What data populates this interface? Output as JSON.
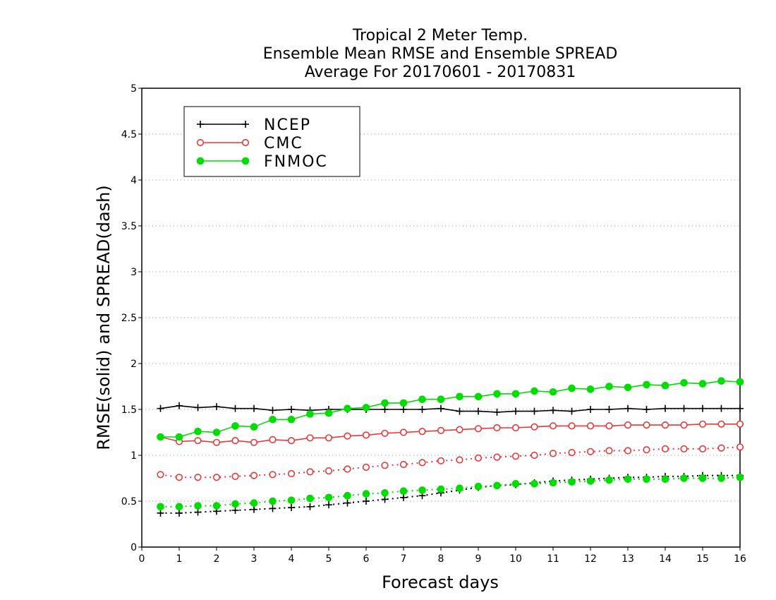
{
  "chart_data": {
    "type": "line",
    "title_lines": [
      "Tropical 2 Meter Temp.",
      "Ensemble Mean RMSE and Ensemble SPREAD",
      "Average For 20170601 - 20170831"
    ],
    "xlabel": "Forecast days",
    "ylabel": "RMSE(solid) and SPREAD(dash)",
    "xlim": [
      0,
      16
    ],
    "ylim": [
      0,
      5
    ],
    "x_ticks": [
      0,
      1,
      2,
      3,
      4,
      5,
      6,
      7,
      8,
      9,
      10,
      11,
      12,
      13,
      14,
      15,
      16
    ],
    "y_ticks": [
      0,
      0.5,
      1,
      1.5,
      2,
      2.5,
      3,
      3.5,
      4,
      4.5,
      5
    ],
    "y_tick_labels": [
      "0",
      "0.5",
      "1",
      "1.5",
      "2",
      "2.5",
      "3",
      "3.5",
      "4",
      "4.5",
      "5"
    ],
    "grid": "horizontal dotted",
    "legend_position": "top-left",
    "x": [
      0.5,
      1,
      1.5,
      2,
      2.5,
      3,
      3.5,
      4,
      4.5,
      5,
      5.5,
      6,
      6.5,
      7,
      7.5,
      8,
      8.5,
      9,
      9.5,
      10,
      10.5,
      11,
      11.5,
      12,
      12.5,
      13,
      13.5,
      14,
      14.5,
      15,
      15.5,
      16
    ],
    "series": [
      {
        "name": "NCEP",
        "color": "#000000",
        "marker": "plus",
        "rmse": [
          1.51,
          1.54,
          1.52,
          1.53,
          1.51,
          1.51,
          1.49,
          1.5,
          1.49,
          1.5,
          1.5,
          1.5,
          1.5,
          1.5,
          1.5,
          1.51,
          1.48,
          1.48,
          1.47,
          1.48,
          1.48,
          1.49,
          1.48,
          1.5,
          1.5,
          1.51,
          1.5,
          1.51,
          1.51,
          1.51,
          1.51,
          1.51
        ],
        "spread": [
          0.37,
          0.37,
          0.38,
          0.39,
          0.4,
          0.41,
          0.42,
          0.43,
          0.44,
          0.46,
          0.48,
          0.5,
          0.52,
          0.54,
          0.56,
          0.59,
          0.62,
          0.65,
          0.67,
          0.68,
          0.7,
          0.72,
          0.73,
          0.74,
          0.75,
          0.76,
          0.76,
          0.77,
          0.77,
          0.78,
          0.78,
          0.78
        ]
      },
      {
        "name": "CMC",
        "color": "#e8393a",
        "marker": "open-circle",
        "rmse": [
          1.2,
          1.15,
          1.16,
          1.14,
          1.16,
          1.14,
          1.17,
          1.16,
          1.19,
          1.19,
          1.21,
          1.22,
          1.24,
          1.25,
          1.26,
          1.27,
          1.28,
          1.29,
          1.3,
          1.3,
          1.31,
          1.32,
          1.32,
          1.32,
          1.32,
          1.33,
          1.33,
          1.33,
          1.33,
          1.34,
          1.34,
          1.34
        ],
        "spread": [
          0.79,
          0.76,
          0.76,
          0.76,
          0.77,
          0.78,
          0.79,
          0.8,
          0.82,
          0.83,
          0.85,
          0.87,
          0.89,
          0.9,
          0.92,
          0.94,
          0.95,
          0.97,
          0.98,
          0.99,
          1.0,
          1.02,
          1.03,
          1.04,
          1.05,
          1.05,
          1.06,
          1.07,
          1.07,
          1.07,
          1.08,
          1.09
        ]
      },
      {
        "name": "FNMOC",
        "color": "#00dd00",
        "marker": "filled-circle",
        "rmse": [
          1.2,
          1.2,
          1.26,
          1.25,
          1.32,
          1.31,
          1.39,
          1.39,
          1.45,
          1.46,
          1.51,
          1.52,
          1.57,
          1.57,
          1.61,
          1.61,
          1.64,
          1.64,
          1.67,
          1.67,
          1.7,
          1.69,
          1.73,
          1.72,
          1.75,
          1.74,
          1.77,
          1.76,
          1.79,
          1.78,
          1.81,
          1.8
        ],
        "spread": [
          0.44,
          0.44,
          0.45,
          0.45,
          0.47,
          0.48,
          0.5,
          0.51,
          0.53,
          0.54,
          0.56,
          0.58,
          0.59,
          0.61,
          0.62,
          0.63,
          0.64,
          0.66,
          0.67,
          0.69,
          0.69,
          0.7,
          0.71,
          0.72,
          0.73,
          0.74,
          0.74,
          0.74,
          0.75,
          0.75,
          0.75,
          0.76
        ]
      }
    ]
  }
}
